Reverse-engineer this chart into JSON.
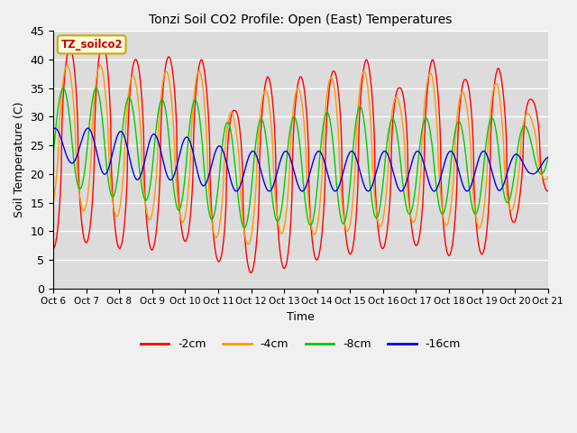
{
  "title": "Tonzi Soil CO2 Profile: Open (East) Temperatures",
  "ylabel": "Soil Temperature (C)",
  "xlabel": "Time",
  "watermark": "TZ_soilco2",
  "ylim": [
    0,
    45
  ],
  "tick_labels": [
    "Oct 6",
    "Oct 7",
    "Oct 8",
    "Oct 9",
    "Oct 10",
    "Oct 11",
    "Oct 12",
    "Oct 13",
    "Oct 14",
    "Oct 15",
    "Oct 16",
    "Oct 17",
    "Oct 18",
    "Oct 19",
    "Oct 20",
    "Oct 21"
  ],
  "series_labels": [
    "-2cm",
    "-4cm",
    "-8cm",
    "-16cm"
  ],
  "series_colors": [
    "#ff0000",
    "#ff9900",
    "#00cc00",
    "#0000ee"
  ],
  "fig_facecolor": "#f0f0f0",
  "plot_bg_color": "#dcdcdc",
  "grid_color": "#ffffff",
  "n_days": 15,
  "samples_per_day": 96
}
